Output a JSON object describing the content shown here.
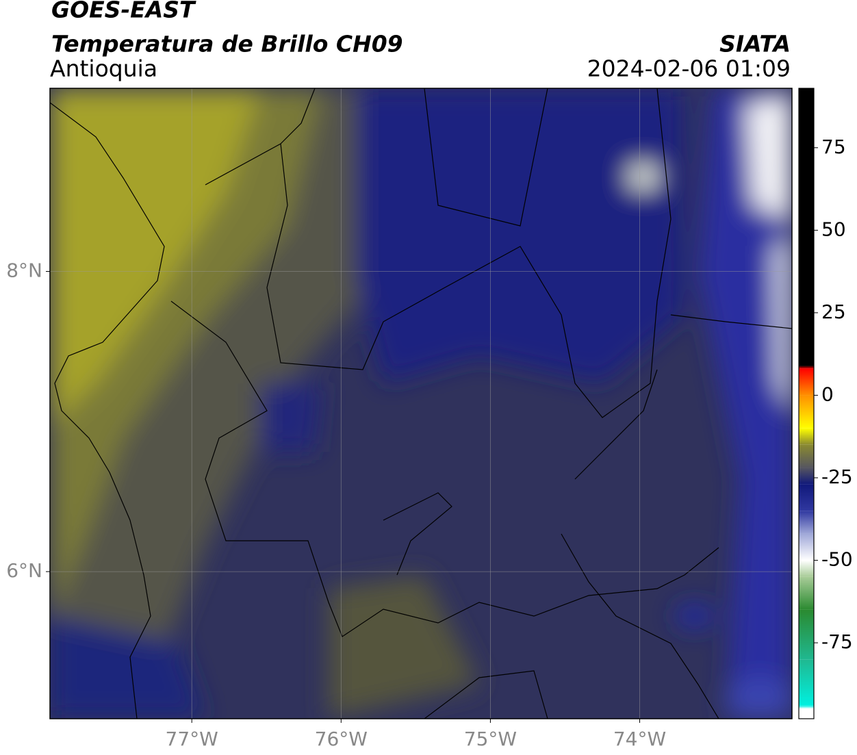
{
  "header": {
    "satellite": "GOES-EAST",
    "product": "Temperatura de Brillo CH09",
    "region": "Antioquia",
    "source": "SIATA",
    "datetime": "2024-02-06 01:09"
  },
  "map": {
    "xlim": [
      -77.95,
      -72.98
    ],
    "ylim": [
      5.02,
      9.22
    ],
    "xticks": [
      {
        "value": -77,
        "label": "77°W"
      },
      {
        "value": -76,
        "label": "76°W"
      },
      {
        "value": -75,
        "label": "75°W"
      },
      {
        "value": -74,
        "label": "74°W"
      }
    ],
    "yticks": [
      {
        "value": 6,
        "label": "6°N"
      },
      {
        "value": 8,
        "label": "8°N"
      }
    ],
    "grid": true
  },
  "colorbar": {
    "lim": [
      -98,
      93
    ],
    "ticks": [
      75,
      50,
      25,
      0,
      -25,
      -50,
      -75
    ],
    "stops": [
      {
        "value": -98,
        "color": "#ffffff"
      },
      {
        "value": -95,
        "color": "#ffffff"
      },
      {
        "value": -94,
        "color": "#00f0e0"
      },
      {
        "value": -80,
        "color": "#20b890"
      },
      {
        "value": -65,
        "color": "#2a8a30"
      },
      {
        "value": -55,
        "color": "#a8cc98"
      },
      {
        "value": -50,
        "color": "#ffffff"
      },
      {
        "value": -42,
        "color": "#a0a8d8"
      },
      {
        "value": -35,
        "color": "#3038a0"
      },
      {
        "value": -27,
        "color": "#10187a"
      },
      {
        "value": -22,
        "color": "#555560"
      },
      {
        "value": -15,
        "color": "#8a8a30"
      },
      {
        "value": -10,
        "color": "#ffff00"
      },
      {
        "value": 0,
        "color": "#ff9000"
      },
      {
        "value": 8,
        "color": "#ff0000"
      },
      {
        "value": 9,
        "color": "#000000"
      },
      {
        "value": 93,
        "color": "#000000"
      }
    ]
  }
}
